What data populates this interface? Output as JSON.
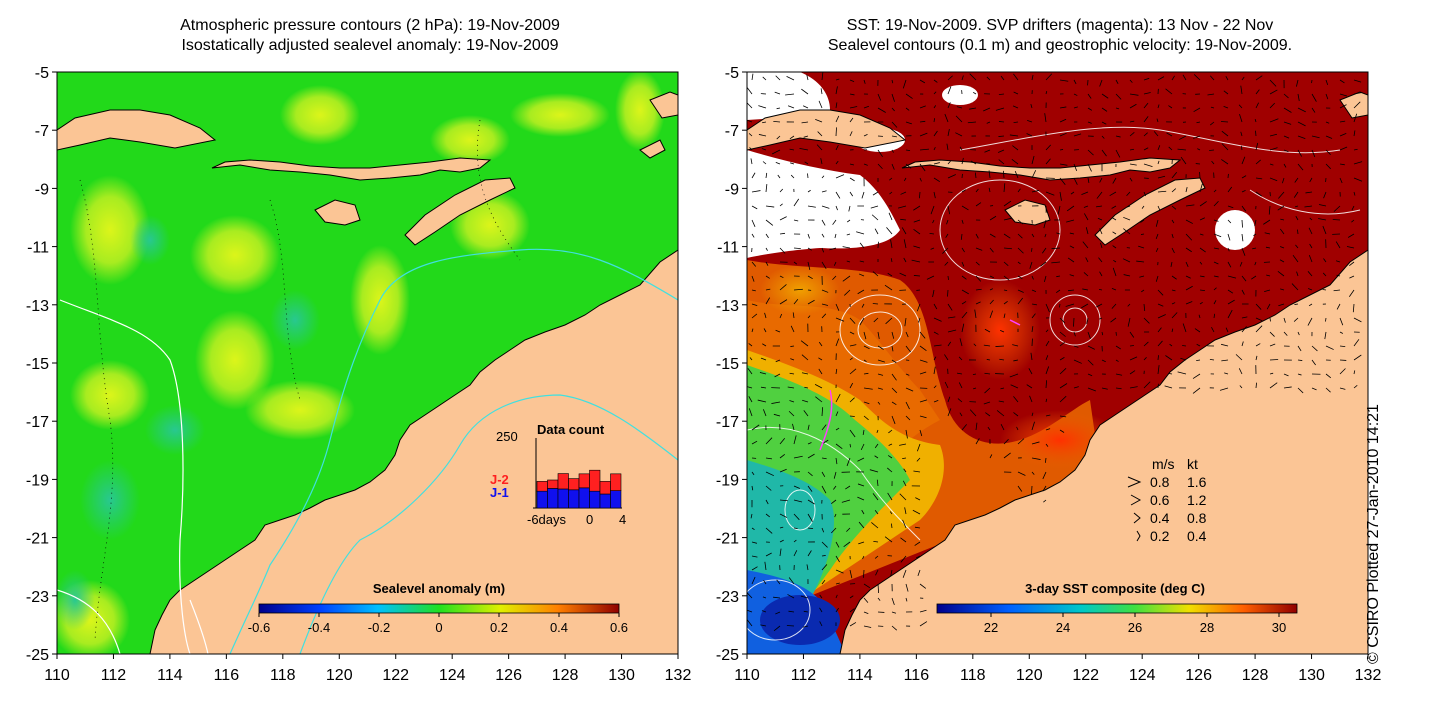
{
  "left_map": {
    "title_line1": "Atmospheric pressure contours (2 hPa): 19-Nov-2009",
    "title_line2": "Isostatically adjusted sealevel anomaly: 19-Nov-2009",
    "x_ticks": [
      "110",
      "112",
      "114",
      "116",
      "118",
      "120",
      "122",
      "124",
      "126",
      "128",
      "130",
      "132"
    ],
    "y_ticks": [
      "-5",
      "-7",
      "-9",
      "-11",
      "-13",
      "-15",
      "-17",
      "-19",
      "-21",
      "-23",
      "-25"
    ],
    "colorbar": {
      "label": "Sealevel anomaly (m)",
      "ticks": [
        "-0.6",
        "-0.4",
        "-0.2",
        "0",
        "0.2",
        "0.4",
        "0.6"
      ],
      "range": [
        -0.6,
        0.6
      ]
    },
    "inset": {
      "title": "Data count",
      "max_label": "250",
      "series1": "J-2",
      "series2": "J-1",
      "x_label_left": "-6days",
      "x_label_mid": "0",
      "x_label_right": "4",
      "series1_color": "#ff2020",
      "series2_color": "#1010ee",
      "bars": [
        {
          "j1": 60,
          "j2": 35
        },
        {
          "j1": 70,
          "j2": 30
        },
        {
          "j1": 68,
          "j2": 55
        },
        {
          "j1": 65,
          "j2": 40
        },
        {
          "j1": 72,
          "j2": 50
        },
        {
          "j1": 60,
          "j2": 75
        },
        {
          "j1": 50,
          "j2": 45
        },
        {
          "j1": 62,
          "j2": 60
        }
      ]
    }
  },
  "right_map": {
    "title_line1": "SST: 19-Nov-2009. SVP drifters (magenta): 13 Nov - 22 Nov",
    "title_line2": "Sealevel contours (0.1 m) and geostrophic velocity: 19-Nov-2009.",
    "x_ticks": [
      "110",
      "112",
      "114",
      "116",
      "118",
      "120",
      "122",
      "124",
      "126",
      "128",
      "130",
      "132"
    ],
    "y_ticks": [
      "-5",
      "-7",
      "-9",
      "-11",
      "-13",
      "-15",
      "-17",
      "-19",
      "-21",
      "-23",
      "-25"
    ],
    "colorbar": {
      "label": "3-day SST composite (deg C)",
      "ticks": [
        "22",
        "24",
        "26",
        "28",
        "30"
      ],
      "range": [
        20.5,
        30.5
      ]
    },
    "velocity_legend": {
      "header_ms": "m/s",
      "header_kt": "kt",
      "rows": [
        {
          "ms": "0.8",
          "kt": "1.6"
        },
        {
          "ms": "0.6",
          "kt": "1.2"
        },
        {
          "ms": "0.4",
          "kt": "0.8"
        },
        {
          "ms": "0.2",
          "kt": "0.4"
        }
      ]
    }
  },
  "credit": "© CSIRO Plotted 27-Jan-2010 14:21",
  "colors": {
    "land": "#fbc595",
    "sla_base": "#22d91a",
    "sla_high": "#b4f01e",
    "sst_high": "#a00000",
    "sst_mid": "#e05a00",
    "sst_low": "#20b0a0",
    "contour": "#ffffff",
    "isobath": "#40e0e0"
  }
}
